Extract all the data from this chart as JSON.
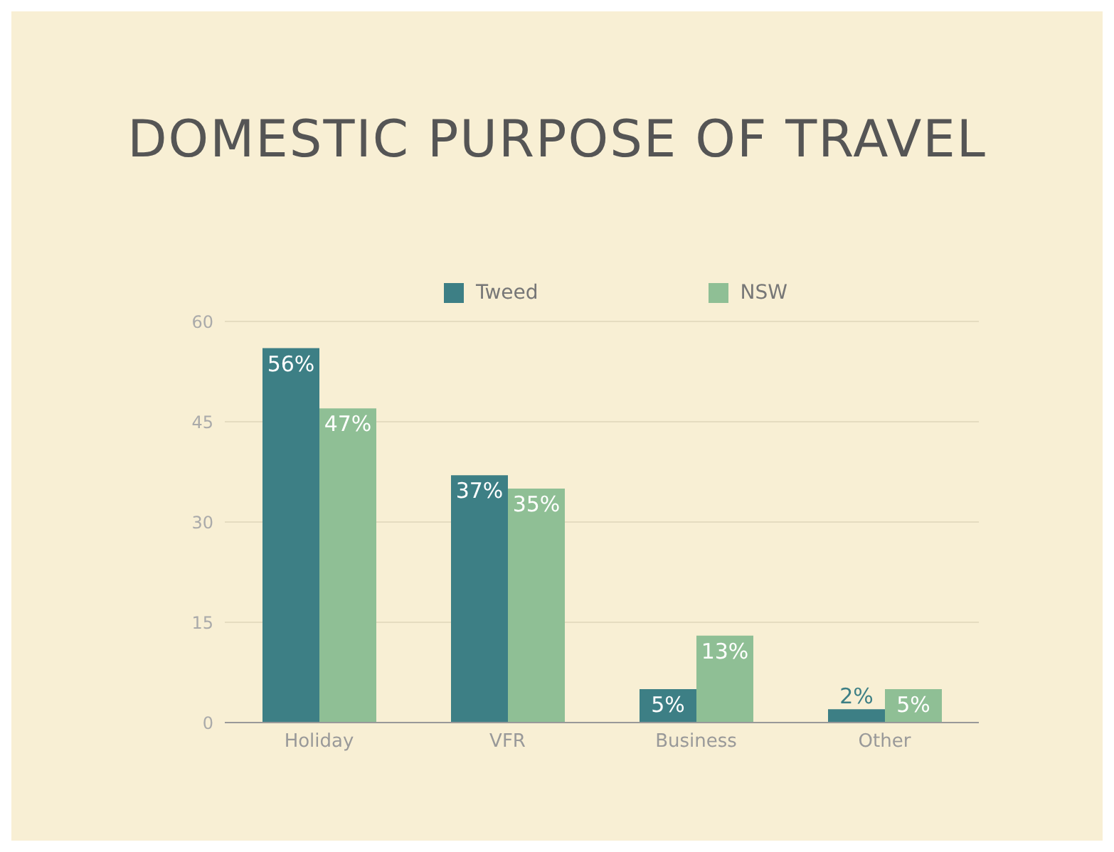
{
  "chart_data": {
    "type": "bar",
    "title": "DOMESTIC PURPOSE OF TRAVEL",
    "categories": [
      "Holiday",
      "VFR",
      "Business",
      "Other"
    ],
    "series": [
      {
        "name": "Tweed",
        "color": "#3d7f85",
        "values": [
          56,
          37,
          5,
          2
        ],
        "value_labels": [
          "56%",
          "37%",
          "5%",
          "2%"
        ]
      },
      {
        "name": "NSW",
        "color": "#8fbf95",
        "values": [
          47,
          35,
          13,
          5
        ],
        "value_labels": [
          "47%",
          "35%",
          "13%",
          "5%"
        ]
      }
    ],
    "ylim": [
      0,
      60
    ],
    "yticks": [
      0,
      15,
      30,
      45,
      60
    ],
    "grid": "y",
    "legend": "top"
  }
}
